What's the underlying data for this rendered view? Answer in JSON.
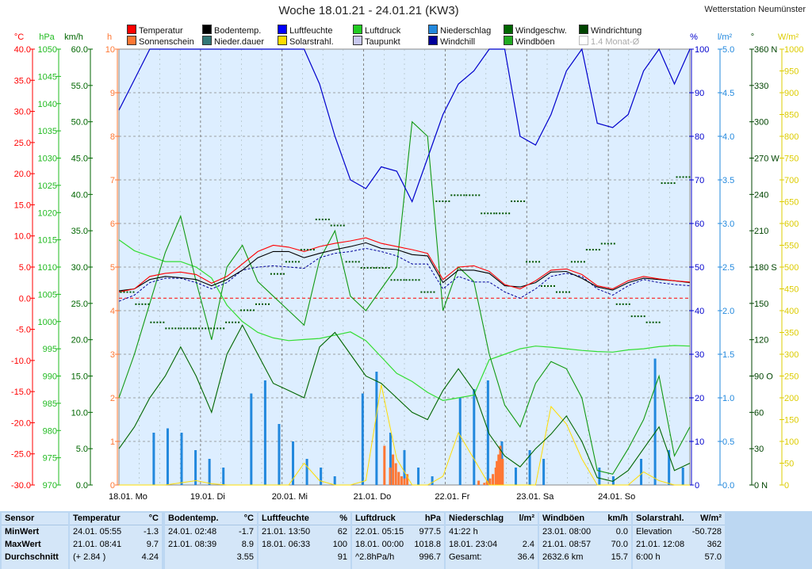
{
  "title": "Woche 18.01.21 - 24.01.21 (KW3)",
  "station": "Wetterstation Neumünster",
  "legend": [
    {
      "label": "Temperatur",
      "color": "#ff0000"
    },
    {
      "label": "Bodentemp.",
      "color": "#000000"
    },
    {
      "label": "Luftfeuchte",
      "color": "#0000ff"
    },
    {
      "label": "Luftdruck",
      "color": "#22cc22"
    },
    {
      "label": "Niederschlag",
      "color": "#2288dd"
    },
    {
      "label": "Windgeschw.",
      "color": "#006600"
    },
    {
      "label": "Windrichtung",
      "color": "#004400"
    },
    {
      "label": "Sonnenschein",
      "color": "#ff7733"
    },
    {
      "label": "Nieder.dauer",
      "color": "#337777"
    },
    {
      "label": "Solarstrahl.",
      "color": "#ffdd00"
    },
    {
      "label": "Taupunkt",
      "color": "#c8c8ee"
    },
    {
      "label": "Windchill",
      "color": "#000099"
    },
    {
      "label": "Windböen",
      "color": "#22aa22"
    },
    {
      "label": "1.4 Monat-Ø",
      "color": "#ffffff",
      "disabled": true
    }
  ],
  "chart_data": {
    "type": "line",
    "grid": true,
    "x_ticks": [
      "18.01. Mo",
      "19.01. Di",
      "20.01. Mi",
      "21.01. Do",
      "22.01. Fr",
      "23.01. Sa",
      "24.01. So"
    ],
    "axes": {
      "temperature": {
        "label": "°C",
        "range": [
          -30,
          40
        ],
        "ticks": [
          "40.0",
          "35.0",
          "30.0",
          "25.0",
          "20.0",
          "15.0",
          "10.0",
          "5.0",
          "0.0",
          "-5.0",
          "-10.0",
          "-15.0",
          "-20.0",
          "-25.0",
          "-30.0"
        ],
        "color": "#ff0000"
      },
      "pressure": {
        "label": "hPa",
        "range": [
          970,
          1050
        ],
        "ticks": [
          "1050",
          "1045",
          "1040",
          "1035",
          "1030",
          "1025",
          "1020",
          "1015",
          "1010",
          "1005",
          "1000",
          "995",
          "990",
          "985",
          "980",
          "975",
          "970"
        ],
        "color": "#22bb22"
      },
      "wind": {
        "label": "km/h",
        "range": [
          0,
          60
        ],
        "ticks": [
          "60.0",
          "55.0",
          "50.0",
          "45.0",
          "40.0",
          "35.0",
          "30.0",
          "25.0",
          "20.0",
          "15.0",
          "10.0",
          "5.0",
          "0.0"
        ],
        "color": "#006600"
      },
      "hours": {
        "label": "h",
        "range": [
          0,
          10
        ],
        "ticks": [
          "10",
          "9",
          "8",
          "7",
          "6",
          "5",
          "4",
          "3",
          "2",
          "1",
          "0"
        ],
        "color": "#ff7733"
      },
      "humidity": {
        "label": "%",
        "range": [
          0,
          100
        ],
        "ticks": [
          "100",
          "90",
          "80",
          "70",
          "60",
          "50",
          "40",
          "30",
          "20",
          "10",
          "0"
        ],
        "color": "#0000cc"
      },
      "rain": {
        "label": "l/m²",
        "range": [
          0,
          5
        ],
        "ticks": [
          "5.0",
          "4.5",
          "4.0",
          "3.5",
          "3.0",
          "2.5",
          "2.0",
          "1.5",
          "1.0",
          "0.5",
          "0.0"
        ],
        "color": "#2288dd"
      },
      "direction": {
        "label": "°",
        "range": [
          0,
          360
        ],
        "ticks": [
          "360 N",
          "330",
          "300",
          "270 W",
          "240",
          "210",
          "180 S",
          "150",
          "120",
          "90 O",
          "60",
          "30",
          "0 N"
        ],
        "color": "#004400"
      },
      "solar": {
        "label": "W/m²",
        "range": [
          0,
          1000
        ],
        "ticks": [
          "1000",
          "950",
          "900",
          "850",
          "800",
          "750",
          "700",
          "650",
          "600",
          "550",
          "500",
          "450",
          "400",
          "350",
          "300",
          "250",
          "200",
          "150",
          "100",
          "50",
          "0"
        ],
        "color": "#ddcc00"
      }
    },
    "series": {
      "temperature": [
        1,
        1.5,
        3.5,
        4,
        4.2,
        3.8,
        2.4,
        3.5,
        5.5,
        7.5,
        8.5,
        8.2,
        7.5,
        8.3,
        8.8,
        9.2,
        9.7,
        8.8,
        8.3,
        7.8,
        7.2,
        3,
        5,
        5.2,
        4.3,
        2.2,
        1.5,
        2.8,
        4.5,
        4.7,
        3.8,
        2,
        1.5,
        2.8,
        3.5,
        3.1,
        2.8,
        2.6
      ],
      "ground_temp": [
        1.2,
        1.5,
        3,
        3.5,
        3.3,
        3,
        2,
        3,
        4.5,
        6.5,
        7.5,
        7.5,
        6.5,
        7.2,
        7.8,
        8.3,
        8.9,
        8,
        7.8,
        7,
        6.8,
        2.5,
        4.5,
        4.5,
        4,
        2,
        1.8,
        2.5,
        4.2,
        4.3,
        3.2,
        1.8,
        1.3,
        2.5,
        3.2,
        3,
        2.8,
        2.5
      ],
      "dew_point": [
        -0.5,
        0.5,
        2.5,
        3.2,
        3.2,
        2.5,
        1.5,
        2.5,
        4.5,
        5,
        5.2,
        5,
        4.8,
        6.5,
        7.2,
        7.5,
        8,
        7.5,
        6.8,
        5.5,
        5.5,
        1.5,
        3.5,
        2.6,
        2.6,
        1,
        0,
        1.5,
        3.5,
        4,
        3.5,
        1.5,
        0.5,
        2,
        3,
        2.5,
        2.2,
        2
      ],
      "humidity": [
        86,
        93,
        100,
        100,
        100,
        100,
        100,
        100,
        100,
        100,
        100,
        100,
        100,
        92,
        80,
        70,
        68,
        73,
        72,
        65,
        75,
        85,
        92,
        95,
        100,
        100,
        80,
        78,
        85,
        95,
        100,
        83,
        82,
        85,
        95,
        100,
        92,
        100
      ],
      "pressure": [
        1015,
        1013,
        1012,
        1011,
        1011,
        1010,
        1008,
        1003,
        1000,
        998,
        997,
        996.5,
        996.7,
        996.9,
        997.5,
        998.1,
        996.5,
        993.5,
        990.5,
        989,
        987,
        985.5,
        986,
        986.5,
        993,
        994,
        995,
        995.5,
        995.3,
        995,
        994.7,
        994.5,
        994.4,
        994.8,
        995,
        995.4,
        995.6,
        995.5
      ],
      "wind_avg": [
        5,
        8,
        12,
        15,
        19,
        15,
        10,
        18,
        22,
        18,
        14,
        13,
        12,
        19,
        21,
        18,
        15,
        14,
        12,
        10,
        9,
        13,
        16,
        13,
        7,
        4,
        2.5,
        5,
        7,
        9.5,
        6,
        1,
        0.5,
        2,
        5,
        8,
        2,
        3
      ],
      "wind_gust": [
        12,
        18,
        25,
        32,
        37,
        28,
        20,
        30,
        33,
        28,
        26,
        24,
        22,
        31,
        35,
        26,
        24,
        27,
        30,
        50,
        48,
        24,
        30,
        28,
        18,
        11,
        8,
        14,
        17,
        16,
        12,
        2,
        1.5,
        5,
        9,
        15,
        4,
        8
      ],
      "rain_bars": [
        0,
        0,
        0.6,
        0.65,
        0.6,
        0.4,
        0.3,
        0.2,
        0,
        1.05,
        1.2,
        0.7,
        0.5,
        0.3,
        0.2,
        0.1,
        0,
        1.05,
        1.3,
        0.6,
        0.4,
        0.2,
        0.1,
        0,
        1.0,
        1.1,
        1.2,
        0.5,
        0.2,
        0.4,
        0.3,
        0,
        0,
        0,
        0.2,
        0.1,
        0,
        0.3,
        1.45,
        0.4,
        0.2
      ],
      "sunshine_bars": [
        0.9,
        0.4,
        0.7,
        0.5,
        0.3,
        0.2,
        0.15,
        0.25,
        0.1,
        0.05,
        0.1,
        0.15,
        0.25,
        0.4,
        0.55,
        0.7,
        0.9,
        0.6
      ],
      "solar": [
        0,
        0,
        0,
        0,
        5,
        10,
        3,
        0,
        0,
        0,
        0,
        0,
        50,
        10,
        0,
        0,
        10,
        230,
        60,
        0,
        0,
        20,
        120,
        60,
        0,
        0,
        0,
        0,
        180,
        140,
        60,
        0,
        0,
        0,
        30,
        10,
        0,
        0
      ],
      "wind_direction": [
        160,
        150,
        135,
        130,
        130,
        130,
        130,
        135,
        145,
        150,
        175,
        185,
        195,
        220,
        215,
        185,
        180,
        180,
        170,
        170,
        160,
        235,
        240,
        240,
        225,
        225,
        235,
        185,
        165,
        160,
        185,
        195,
        200,
        150,
        140,
        135,
        250,
        255
      ]
    }
  },
  "stats": [
    {
      "label": "Sensor",
      "unit": "",
      "rows": [
        "MinWert",
        "MaxWert",
        "Durchschnitt"
      ]
    },
    {
      "label": "Temperatur",
      "unit": "°C",
      "rows": [
        {
          "t": "24.01. 05:55",
          "v": "-1.3"
        },
        {
          "t": "21.01. 08:41",
          "v": "9.7"
        },
        {
          "t": "(+ 2.84 )",
          "v": "4.24"
        }
      ]
    },
    {
      "label": "Bodentemp.",
      "unit": "°C",
      "rows": [
        {
          "t": "24.01. 02:48",
          "v": "-1.7"
        },
        {
          "t": "21.01. 08:39",
          "v": "8.9"
        },
        {
          "t": "",
          "v": "3.55"
        }
      ]
    },
    {
      "label": "Luftfeuchte",
      "unit": "%",
      "rows": [
        {
          "t": "21.01. 13:50",
          "v": "62"
        },
        {
          "t": "18.01. 06:33",
          "v": "100"
        },
        {
          "t": "",
          "v": "91"
        }
      ]
    },
    {
      "label": "Luftdruck",
      "unit": "hPa",
      "rows": [
        {
          "t": "22.01. 05:15",
          "v": "977.5"
        },
        {
          "t": "18.01. 00:00",
          "v": "1018.8"
        },
        {
          "t": "^2.8hPa/h",
          "v": "996.7"
        }
      ]
    },
    {
      "label": "Niederschlag",
      "unit": "l/m²",
      "rows": [
        {
          "t": "41:22 h",
          "v": ""
        },
        {
          "t": "18.01. 23:04",
          "v": "2.4"
        },
        {
          "t": "Gesamt:",
          "v": "36.4"
        }
      ]
    },
    {
      "label": "Windböen",
      "unit": "km/h",
      "rows": [
        {
          "t": "23.01. 08:00",
          "v": "0.0"
        },
        {
          "t": "21.01. 08:57",
          "v": "70.0"
        },
        {
          "t": "2632.6 km",
          "v": "15.7"
        }
      ]
    },
    {
      "label": "Solarstrahl.",
      "unit": "W/m²",
      "rows": [
        {
          "t": "Elevation",
          "v": "-50.728"
        },
        {
          "t": "21.01. 12:08",
          "v": "362"
        },
        {
          "t": "6:00 h",
          "v": "57.0"
        }
      ]
    }
  ]
}
